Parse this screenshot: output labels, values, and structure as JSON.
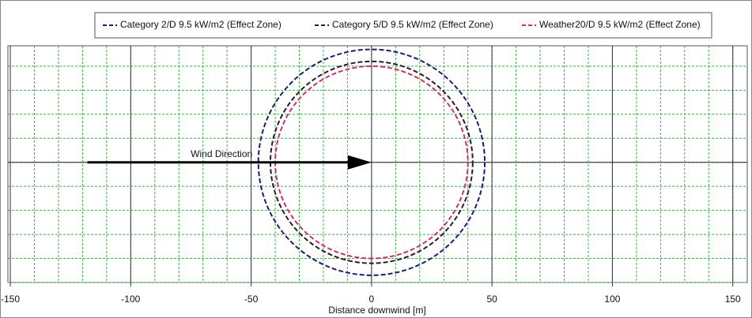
{
  "chart_data": {
    "type": "circle",
    "series": [
      {
        "name": "Category 2/D 9.5 kW/m2 (Effect Zone)",
        "color": "#1c1c6e",
        "radius": 47
      },
      {
        "name": "Category 5/D 9.5 kW/m2 (Effect Zone)",
        "color": "#2a1a2a",
        "radius": 42
      },
      {
        "name": "Weather20/D 9.5 kW/m2 (Effect Zone)",
        "color": "#c8336e",
        "radius": 40
      }
    ],
    "xlim": [
      -151,
      156
    ],
    "ylim": [
      -50,
      48.5
    ],
    "xticks": [
      -150,
      -100,
      -50,
      0,
      50,
      100,
      150
    ],
    "minor_grid_step": 10,
    "x_label": "Distance downwind [m]",
    "annotation": {
      "label": "Wind Direction",
      "from": -118,
      "to": 0
    },
    "grid": true,
    "legend": "top"
  }
}
